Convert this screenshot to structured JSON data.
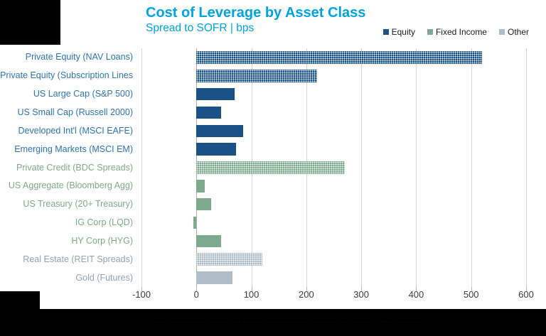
{
  "header": {
    "title": "Cost of Leverage by Asset Class",
    "subtitle": "Spread to SOFR | bps"
  },
  "legend": {
    "items": [
      {
        "label": "Equity",
        "group": "equity"
      },
      {
        "label": "Fixed Income",
        "group": "fixed_income"
      },
      {
        "label": "Other",
        "group": "other"
      }
    ]
  },
  "groups": {
    "equity": {
      "bar_color": "#1A5186",
      "label_color": "#2E74B5"
    },
    "fixed_income": {
      "bar_color": "#7EA98F",
      "label_color": "#81A78F"
    },
    "other": {
      "bar_color": "#AEBDC7",
      "label_color": "#93A3AF"
    }
  },
  "chart_data": {
    "type": "bar",
    "orientation": "horizontal",
    "title": "Cost of Leverage by Asset Class",
    "subtitle": "Spread to SOFR | bps",
    "unit": "bps spread to SOFR",
    "xlim": [
      -100,
      600
    ],
    "xticks": [
      -100,
      0,
      100,
      200,
      300,
      400,
      500,
      600
    ],
    "tick_labels": [
      "-100",
      "0",
      "100",
      "200",
      "300",
      "400",
      "500",
      "600"
    ],
    "grid": true,
    "legend_position": "top-right",
    "bars": [
      {
        "label": "Private Equity (NAV Loans)",
        "value": 520,
        "group": "equity",
        "pattern": true
      },
      {
        "label": "Private Equity (Subscription Lines",
        "value": 220,
        "group": "equity",
        "pattern": true
      },
      {
        "label": "US Large Cap (S&P 500)",
        "value": 70,
        "group": "equity",
        "pattern": false
      },
      {
        "label": "US Small Cap (Russell 2000)",
        "value": 45,
        "group": "equity",
        "pattern": false
      },
      {
        "label": "Developed Int'l (MSCI EAFE)",
        "value": 85,
        "group": "equity",
        "pattern": false
      },
      {
        "label": "Emerging Markets (MSCI EM)",
        "value": 72,
        "group": "equity",
        "pattern": false
      },
      {
        "label": "Private Credit (BDC Spreads)",
        "value": 270,
        "group": "fixed_income",
        "pattern": true
      },
      {
        "label": "US Aggregate (Bloomberg Agg)",
        "value": 15,
        "group": "fixed_income",
        "pattern": false
      },
      {
        "label": "US Treasury (20+ Treasury)",
        "value": 27,
        "group": "fixed_income",
        "pattern": false
      },
      {
        "label": "IG Corp (LQD)",
        "value": -5,
        "group": "fixed_income",
        "pattern": false
      },
      {
        "label": "HY Corp (HYG)",
        "value": 45,
        "group": "fixed_income",
        "pattern": false
      },
      {
        "label": "Real Estate (REIT Spreads)",
        "value": 120,
        "group": "other",
        "pattern": true
      },
      {
        "label": "Gold (Futures)",
        "value": 65,
        "group": "other",
        "pattern": false
      }
    ]
  },
  "footnote": {
    "illegible": true,
    "text": "··· ····· ········ ····· ······· ··· ········ ········ ······ ········· ···· ······· ·· ······ ········"
  }
}
